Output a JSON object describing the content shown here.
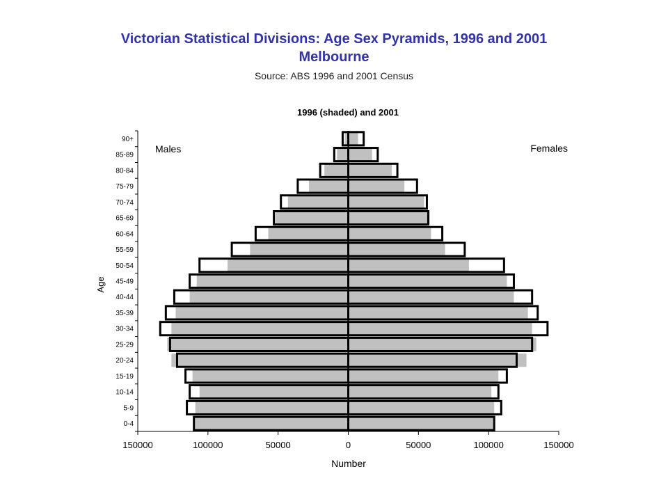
{
  "page": {
    "title": "Victorian Statistical Divisions:  Age Sex Pyramids, 1996 and 2001",
    "subtitle": "Melbourne",
    "source": "Source:   ABS 1996 and 2001 Census"
  },
  "colors": {
    "title": "#3333a8",
    "shaded_1996": "#c0c0c0",
    "outline_2001": "#000000"
  },
  "chart_data": {
    "type": "bar",
    "orientation": "horizontal",
    "title": "1996 (shaded) and 2001",
    "xlabel": "Number",
    "ylabel": "Age",
    "left_label": "Males",
    "right_label": "Females",
    "xlim": [
      -150000,
      150000
    ],
    "xticks": [
      -150000,
      -100000,
      -50000,
      0,
      50000,
      100000,
      150000
    ],
    "xtick_labels": [
      "150000",
      "100000",
      "50000",
      "0",
      "50000",
      "100000",
      "150000"
    ],
    "categories": [
      "0-4",
      "5-9",
      "10-14",
      "15-19",
      "20-24",
      "25-29",
      "30-34",
      "35-39",
      "40-44",
      "45-49",
      "50-54",
      "55-59",
      "60-64",
      "65-69",
      "70-74",
      "75-79",
      "80-84",
      "85-89",
      "90+"
    ],
    "series": [
      {
        "name": "1996 (shaded)",
        "style": "shaded",
        "males": [
          110000,
          109000,
          106000,
          111000,
          126000,
          129000,
          126000,
          123000,
          113000,
          108000,
          86000,
          70000,
          57000,
          52000,
          43000,
          28000,
          17000,
          8000,
          2500
        ],
        "females": [
          104000,
          104000,
          102000,
          107000,
          127000,
          134000,
          131000,
          128000,
          118000,
          113000,
          86000,
          69000,
          59000,
          58000,
          54000,
          40000,
          31000,
          17000,
          7000
        ]
      },
      {
        "name": "2001",
        "style": "outline",
        "males": [
          110000,
          115000,
          113000,
          116000,
          122000,
          127000,
          134000,
          130000,
          124000,
          113000,
          106000,
          83000,
          66000,
          53000,
          48000,
          36000,
          20000,
          10000,
          4000
        ],
        "females": [
          104000,
          109000,
          107000,
          113000,
          120000,
          131000,
          142000,
          135000,
          131000,
          118000,
          111000,
          83000,
          67000,
          57000,
          56000,
          49000,
          35000,
          21000,
          11000
        ]
      }
    ]
  }
}
